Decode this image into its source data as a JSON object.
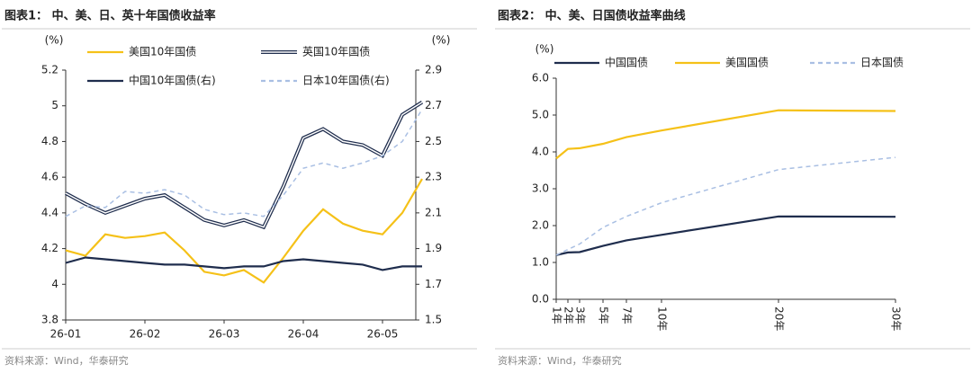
{
  "chart_data": [
    {
      "type": "line",
      "title": "图表1： 中、美、日、英十年国债收益率",
      "y_label": "(%)",
      "y2_label": "(%)",
      "note": "资料来源：Wind，华泰研究",
      "categories": [
        "26-01",
        null,
        null,
        null,
        "26-02",
        null,
        null,
        null,
        "26-03",
        null,
        null,
        null,
        "26-04",
        null,
        null,
        null,
        "26-05",
        null,
        null
      ],
      "ylim": [
        3.8,
        5.2
      ],
      "yticks": [
        3.8,
        4.0,
        4.2,
        4.4,
        4.6,
        4.8,
        5.0,
        5.2
      ],
      "y2lim": [
        1.5,
        2.9
      ],
      "y2ticks": [
        1.5,
        1.7,
        1.9,
        2.1,
        2.3,
        2.5,
        2.7,
        2.9
      ],
      "series": [
        {
          "name": "美国10年国债",
          "color": "#f5c118",
          "line_style": "solid",
          "values": [
            4.19,
            4.16,
            4.28,
            4.26,
            4.27,
            4.29,
            4.19,
            4.07,
            4.05,
            4.08,
            4.01,
            4.15,
            4.3,
            4.42,
            4.34,
            4.3,
            4.28,
            4.4,
            4.59
          ]
        },
        {
          "name": "英国10年国债",
          "color": "#1f2d4d",
          "line_style": "double",
          "values": [
            4.51,
            4.45,
            4.4,
            4.44,
            4.48,
            4.5,
            4.43,
            4.36,
            4.33,
            4.36,
            4.32,
            4.55,
            4.82,
            4.87,
            4.8,
            4.78,
            4.72,
            4.95,
            5.02
          ]
        },
        {
          "name": "中国10年国债(右)",
          "color": "#1f2d4d",
          "line_style": "solid",
          "axis": "y2",
          "values": [
            1.82,
            1.85,
            1.84,
            1.83,
            1.82,
            1.81,
            1.81,
            1.8,
            1.79,
            1.8,
            1.8,
            1.83,
            1.84,
            1.83,
            1.82,
            1.81,
            1.78,
            1.8,
            1.8
          ]
        },
        {
          "name": "日本10年国债(右)",
          "color": "#a9bfe3",
          "line_style": "dashed",
          "axis": "y2",
          "values": [
            2.08,
            2.14,
            2.13,
            2.22,
            2.21,
            2.23,
            2.2,
            2.12,
            2.09,
            2.1,
            2.08,
            2.2,
            2.35,
            2.38,
            2.35,
            2.38,
            2.42,
            2.5,
            2.68
          ]
        }
      ]
    },
    {
      "type": "line",
      "title": "图表2： 中、美、日国债收益率曲线",
      "y_label": "(%)",
      "note": "资料来源：Wind，华泰研究",
      "x": [
        1,
        2,
        3,
        5,
        7,
        10,
        20,
        30
      ],
      "xlim": [
        1,
        30
      ],
      "xticks": [
        {
          "value": 1,
          "label": "1年"
        },
        {
          "value": 2,
          "label": "2年"
        },
        {
          "value": 3,
          "label": "3年"
        },
        {
          "value": 5,
          "label": "5年"
        },
        {
          "value": 7,
          "label": "7年"
        },
        {
          "value": 10,
          "label": "10年"
        },
        {
          "value": 20,
          "label": "20年"
        },
        {
          "value": 30,
          "label": "30年"
        }
      ],
      "ylim": [
        0,
        6
      ],
      "yticks": [
        {
          "value": 0,
          "label": "0.0"
        },
        {
          "value": 1,
          "label": "1.0"
        },
        {
          "value": 2,
          "label": "2.0"
        },
        {
          "value": 3,
          "label": "3.0"
        },
        {
          "value": 4,
          "label": "4.0"
        },
        {
          "value": 5,
          "label": "5.0"
        },
        {
          "value": 6,
          "label": "6.0"
        }
      ],
      "series": [
        {
          "name": "中国国债",
          "color": "#1f2d4d",
          "line_style": "solid",
          "values": [
            1.2,
            1.27,
            1.28,
            1.45,
            1.6,
            1.75,
            2.25,
            2.24
          ]
        },
        {
          "name": "美国国债",
          "color": "#f5c118",
          "line_style": "solid",
          "values": [
            3.82,
            4.08,
            4.1,
            4.22,
            4.4,
            4.58,
            5.13,
            5.11
          ]
        },
        {
          "name": "日本国债",
          "color": "#a9bfe3",
          "line_style": "dashed",
          "values": [
            1.2,
            1.35,
            1.5,
            1.95,
            2.25,
            2.62,
            3.52,
            3.85
          ]
        }
      ]
    }
  ]
}
